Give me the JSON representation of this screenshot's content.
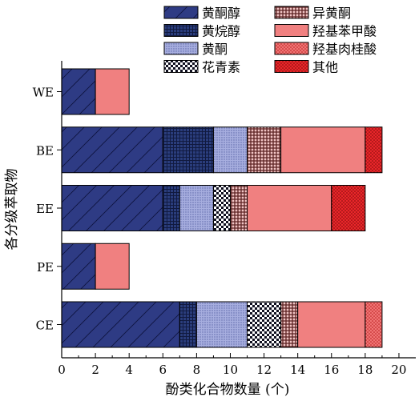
{
  "chart_data": {
    "type": "bar",
    "orientation": "horizontal",
    "stacked": true,
    "categories": [
      "WE",
      "BE",
      "EE",
      "PE",
      "CE"
    ],
    "xlabel": "酚类化合物数量 (个)",
    "ylabel": "各分级萃取物",
    "xlim": [
      0,
      21
    ],
    "xticks": [
      0,
      2,
      4,
      6,
      8,
      10,
      12,
      14,
      16,
      18,
      20
    ],
    "grid": false,
    "legend_position": "top",
    "series": [
      {
        "name": "黄酮醇",
        "values": [
          2,
          6,
          6,
          2,
          7
        ],
        "color": "#2e3b84",
        "pattern": "diag"
      },
      {
        "name": "黄烷醇",
        "values": [
          0,
          3,
          1,
          0,
          1
        ],
        "color": "#243a78",
        "pattern": "grid"
      },
      {
        "name": "黄酮",
        "values": [
          0,
          2,
          2,
          0,
          3
        ],
        "color": "#9ea6d8",
        "pattern": "dots"
      },
      {
        "name": "花青素",
        "values": [
          0,
          0,
          1,
          0,
          2
        ],
        "color": "#ffffff",
        "pattern": "check"
      },
      {
        "name": "异黄酮",
        "values": [
          0,
          2,
          1,
          0,
          1
        ],
        "color": "#c07070",
        "pattern": "cross"
      },
      {
        "name": "羟基苯甲酸",
        "values": [
          2,
          5,
          5,
          2,
          4
        ],
        "color": "#f08080",
        "pattern": "solid"
      },
      {
        "name": "羟基肉桂酸",
        "values": [
          0,
          0,
          0,
          0,
          1
        ],
        "color": "#ef6262",
        "pattern": "reddots"
      },
      {
        "name": "其他",
        "values": [
          0,
          1,
          2,
          0,
          0
        ],
        "color": "#e8262a",
        "pattern": "darkdots"
      }
    ]
  }
}
